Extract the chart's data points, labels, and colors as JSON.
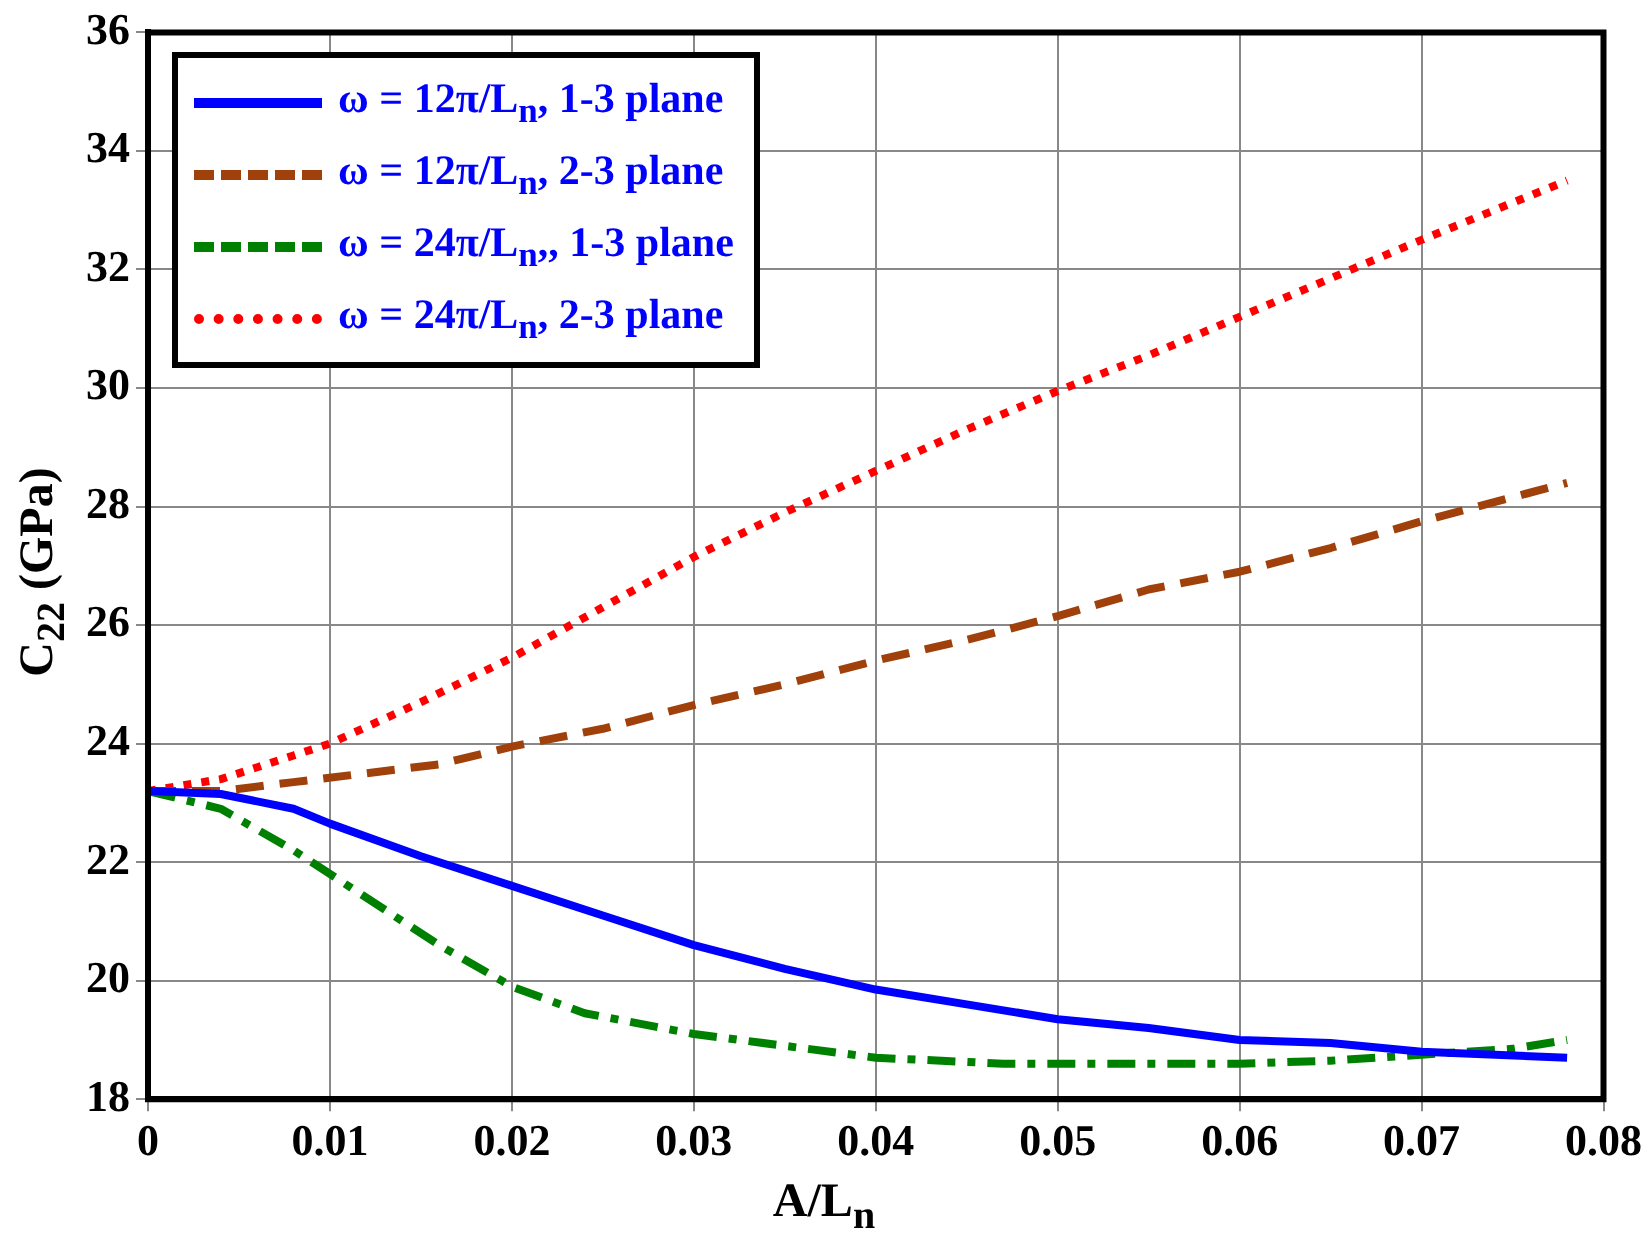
{
  "chart_data": {
    "type": "line",
    "xlabel": "A/L$_{n}$",
    "ylabel": "C$_{22}$ (GPa)",
    "xlim": [
      0,
      0.08
    ],
    "xticks": [
      0,
      0.01,
      0.02,
      0.03,
      0.04,
      0.05,
      0.06,
      0.07,
      0.08
    ],
    "ylim": [
      18,
      36
    ],
    "yticks": [
      18,
      20,
      22,
      24,
      26,
      28,
      30,
      32,
      34,
      36
    ],
    "grid": true,
    "legend": "top left",
    "marker": "none",
    "series": [
      {
        "name": "ω = 12π/L$_{n}$, 1-3 plane",
        "color": "#0000ff",
        "line_style": "solid",
        "x": [
          0,
          0.004,
          0.008,
          0.01,
          0.015,
          0.02,
          0.025,
          0.03,
          0.035,
          0.04,
          0.045,
          0.05,
          0.055,
          0.06,
          0.065,
          0.07,
          0.078
        ],
        "values": [
          23.2,
          23.15,
          22.9,
          22.65,
          22.1,
          21.6,
          21.1,
          20.6,
          20.2,
          19.85,
          19.6,
          19.35,
          19.2,
          19.0,
          18.95,
          18.8,
          18.7
        ]
      },
      {
        "name": "ω = 12π/L$_{n}$, 2-3 plane",
        "color": "#a0400a",
        "line_style": "dashed",
        "x": [
          0,
          0.004,
          0.008,
          0.016,
          0.02,
          0.025,
          0.03,
          0.035,
          0.04,
          0.045,
          0.05,
          0.055,
          0.06,
          0.065,
          0.07,
          0.078
        ],
        "values": [
          23.2,
          23.2,
          23.35,
          23.65,
          23.95,
          24.25,
          24.65,
          25.0,
          25.4,
          25.75,
          26.15,
          26.6,
          26.9,
          27.3,
          27.75,
          28.4
        ]
      },
      {
        "name": "ω = 24π/L$_{n}$,, 1-3 plane",
        "color": "#008000",
        "line_style": "dashdot",
        "x": [
          0,
          0.004,
          0.008,
          0.012,
          0.016,
          0.02,
          0.024,
          0.03,
          0.035,
          0.04,
          0.047,
          0.055,
          0.06,
          0.065,
          0.07,
          0.075,
          0.078
        ],
        "values": [
          23.2,
          22.9,
          22.2,
          21.4,
          20.6,
          19.9,
          19.45,
          19.1,
          18.9,
          18.7,
          18.6,
          18.6,
          18.6,
          18.65,
          18.75,
          18.85,
          19.0
        ]
      },
      {
        "name": "ω = 24π/L$_{n}$, 2-3 plane",
        "color": "#ff0000",
        "line_style": "dotted",
        "x": [
          0,
          0.004,
          0.008,
          0.01,
          0.015,
          0.02,
          0.025,
          0.03,
          0.035,
          0.04,
          0.045,
          0.05,
          0.055,
          0.06,
          0.065,
          0.07,
          0.078
        ],
        "values": [
          23.2,
          23.4,
          23.8,
          24.0,
          24.7,
          25.45,
          26.3,
          27.15,
          27.9,
          28.6,
          29.3,
          29.95,
          30.55,
          31.2,
          31.85,
          32.5,
          33.5
        ]
      }
    ]
  }
}
